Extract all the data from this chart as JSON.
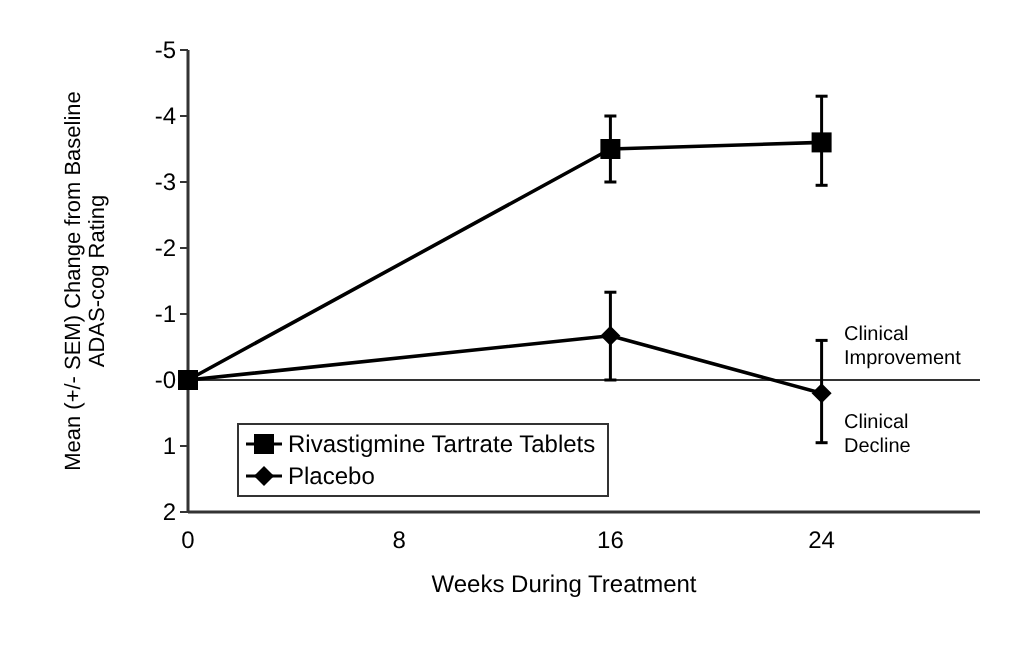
{
  "chart_data": {
    "type": "line",
    "xlabel": "Weeks During Treatment",
    "ylabel": "Mean (+/- SEM) Change from Baseline ADAS-cog Rating",
    "x": [
      0,
      16,
      24
    ],
    "series": [
      {
        "name": "Rivastigmine Tartrate Tablets",
        "color": "#000000",
        "marker": "square",
        "values": [
          0,
          -3.5,
          -3.6
        ],
        "errors": [
          null,
          [
            -4.0,
            -3.0
          ],
          [
            -4.3,
            -2.95
          ]
        ]
      },
      {
        "name": "Placebo",
        "color": "#000000",
        "marker": "diamond",
        "values": [
          0,
          -0.67,
          0.2
        ],
        "errors": [
          null,
          [
            -1.33,
            0
          ],
          [
            -0.6,
            0.95
          ]
        ]
      }
    ],
    "xlim": [
      0,
      30
    ],
    "xticks": [
      0,
      8,
      16,
      24
    ],
    "ylim": [
      2,
      -5
    ],
    "yticks": [
      -5,
      -4,
      -3,
      -2,
      -1,
      {
        "value": 0,
        "label": "-0"
      },
      1,
      2
    ],
    "ref_lines": [
      {
        "axis": "y",
        "value": 0,
        "label": null
      }
    ],
    "annotations": [
      "Clinical Improvement",
      "Clinical Decline"
    ],
    "legend": "bottom left",
    "grid": false
  }
}
